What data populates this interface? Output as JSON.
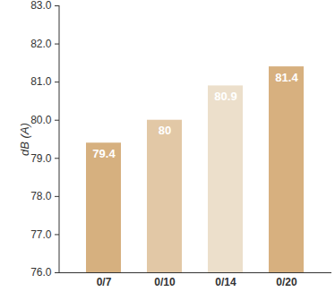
{
  "chart_data": {
    "type": "bar",
    "y_label": "dB (A)",
    "categories": [
      "0/7",
      "0/10",
      "0/14",
      "0/20"
    ],
    "values": [
      79.4,
      80,
      80.9,
      81.4
    ],
    "colors": [
      "#d6b07f",
      "#e2c8a6",
      "#ecdfcb",
      "#d7b07f"
    ],
    "ylim": [
      76,
      83
    ],
    "yticks": [
      76,
      77,
      78,
      79,
      80,
      81,
      82,
      83
    ],
    "grid": false,
    "data_labels": true
  }
}
